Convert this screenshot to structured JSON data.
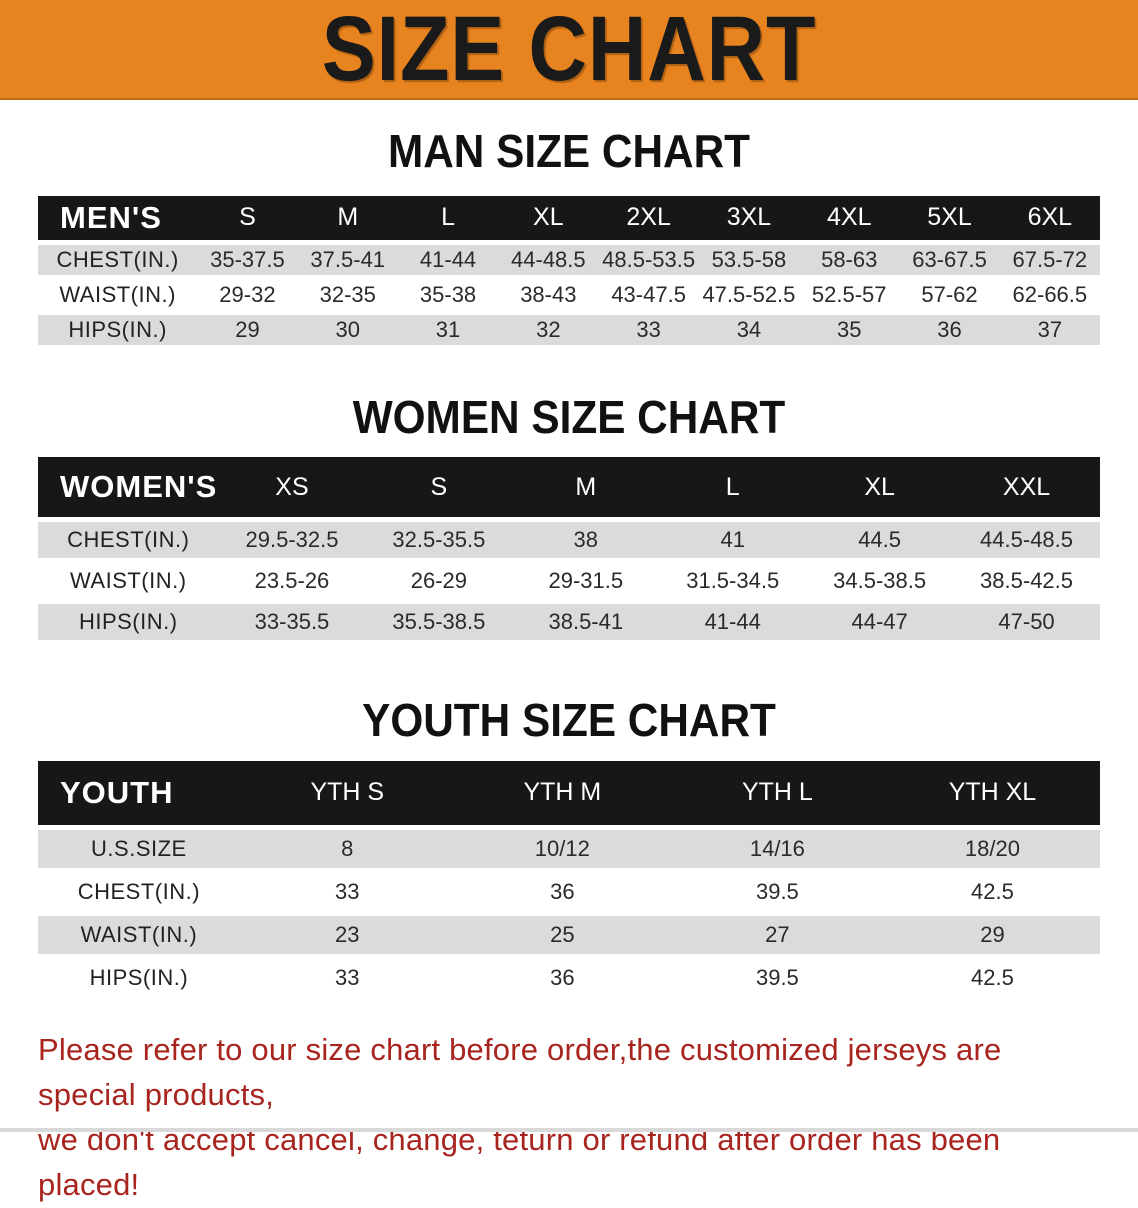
{
  "banner": {
    "title": "SIZE CHART"
  },
  "colors": {
    "banner_bg": "#E8841F",
    "table_header_bg": "#171717",
    "row_shade": "#DBDBDB",
    "disclaimer_red": "#A8241F"
  },
  "sections": [
    {
      "heading": "MAN SIZE CHART",
      "table": {
        "header_label": "MEN'S",
        "columns": [
          "S",
          "M",
          "L",
          "XL",
          "2XL",
          "3XL",
          "4XL",
          "5XL",
          "6XL"
        ],
        "rows": [
          {
            "label": "CHEST(IN.)",
            "values": [
              "35-37.5",
              "37.5-41",
              "41-44",
              "44-48.5",
              "48.5-53.5",
              "53.5-58",
              "58-63",
              "63-67.5",
              "67.5-72"
            ]
          },
          {
            "label": "WAIST(IN.)",
            "values": [
              "29-32",
              "32-35",
              "35-38",
              "38-43",
              "43-47.5",
              "47.5-52.5",
              "52.5-57",
              "57-62",
              "62-66.5"
            ]
          },
          {
            "label": "HIPS(IN.)",
            "values": [
              "29",
              "30",
              "31",
              "32",
              "33",
              "34",
              "35",
              "36",
              "37"
            ]
          }
        ]
      }
    },
    {
      "heading": "WOMEN SIZE CHART",
      "table": {
        "header_label": "WOMEN'S",
        "columns": [
          "XS",
          "S",
          "M",
          "L",
          "XL",
          "XXL"
        ],
        "rows": [
          {
            "label": "CHEST(IN.)",
            "values": [
              "29.5-32.5",
              "32.5-35.5",
              "38",
              "41",
              "44.5",
              "44.5-48.5"
            ]
          },
          {
            "label": "WAIST(IN.)",
            "values": [
              "23.5-26",
              "26-29",
              "29-31.5",
              "31.5-34.5",
              "34.5-38.5",
              "38.5-42.5"
            ]
          },
          {
            "label": "HIPS(IN.)",
            "values": [
              "33-35.5",
              "35.5-38.5",
              "38.5-41",
              "41-44",
              "44-47",
              "47-50"
            ]
          }
        ]
      }
    },
    {
      "heading": "YOUTH SIZE CHART",
      "table": {
        "header_label": "YOUTH",
        "columns": [
          "YTH S",
          "YTH M",
          "YTH L",
          "YTH XL"
        ],
        "rows": [
          {
            "label": "U.S.SIZE",
            "values": [
              "8",
              "10/12",
              "14/16",
              "18/20"
            ]
          },
          {
            "label": "CHEST(IN.)",
            "values": [
              "33",
              "36",
              "39.5",
              "42.5"
            ]
          },
          {
            "label": "WAIST(IN.)",
            "values": [
              "23",
              "25",
              "27",
              "29"
            ]
          },
          {
            "label": "HIPS(IN.)",
            "values": [
              "33",
              "36",
              "39.5",
              "42.5"
            ]
          }
        ]
      }
    }
  ],
  "disclaimer": {
    "line1": "Please refer to our size chart before order,the customized jerseys are special products,",
    "line2": "we don't accept cancel, change, teturn or refund after order has been placed!"
  }
}
